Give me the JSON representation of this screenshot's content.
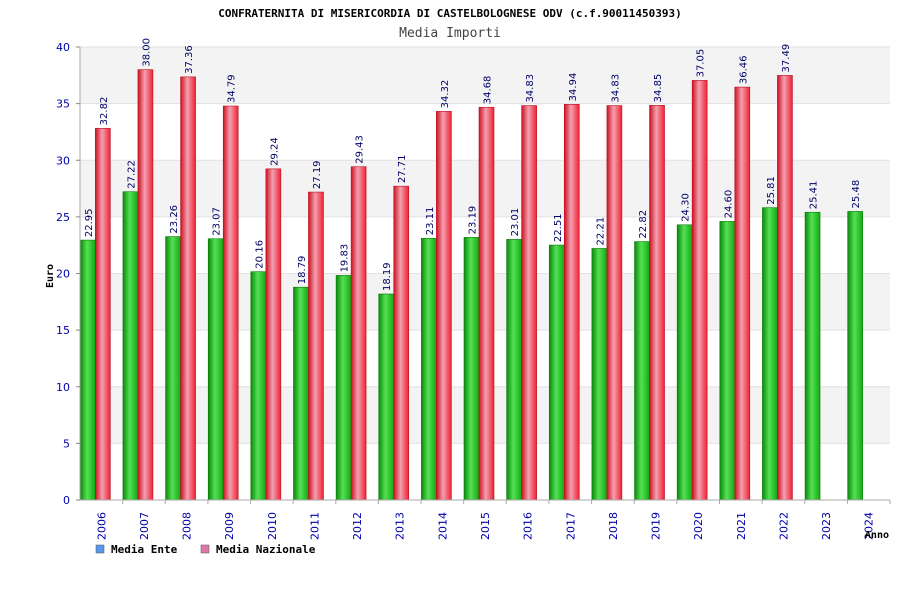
{
  "chart_data": {
    "type": "bar",
    "title": "CONFRATERNITA DI MISERICORDIA DI CASTELBOLOGNESE ODV (c.f.90011450393)",
    "subtitle": "Media Importi",
    "xlabel": "Anno",
    "ylabel": "Euro",
    "ylim": [
      0,
      40
    ],
    "yticks": [
      0,
      5,
      10,
      15,
      20,
      25,
      30,
      35,
      40
    ],
    "categories": [
      "2006",
      "2007",
      "2008",
      "2009",
      "2010",
      "2011",
      "2012",
      "2013",
      "2014",
      "2015",
      "2016",
      "2017",
      "2018",
      "2019",
      "2020",
      "2021",
      "2022",
      "2023",
      "2024"
    ],
    "series": [
      {
        "name": "Media Ente",
        "color": "#22bb22",
        "legend_color": "#5599ee",
        "values": [
          22.95,
          27.22,
          23.26,
          23.07,
          20.16,
          18.79,
          19.83,
          18.19,
          23.11,
          23.19,
          23.01,
          22.51,
          22.21,
          22.82,
          24.3,
          24.6,
          25.81,
          25.41,
          25.48
        ],
        "labels": [
          "22.95",
          "27.22",
          "23.26",
          "23.07",
          "20.16",
          "18.79",
          "19.83",
          "18.19",
          "23.11",
          "23.19",
          "23.01",
          "22.51",
          "22.21",
          "22.82",
          "24.30",
          "24.60",
          "25.81",
          "25.41",
          "25.48"
        ]
      },
      {
        "name": "Media Nazionale",
        "color": "#ee2233",
        "legend_color": "#dd77aa",
        "values": [
          32.82,
          38.0,
          37.36,
          34.79,
          29.24,
          27.19,
          29.43,
          27.71,
          34.32,
          34.68,
          34.83,
          34.94,
          34.83,
          34.85,
          37.05,
          36.46,
          37.49,
          null,
          null
        ],
        "labels": [
          "32.82",
          "38.00",
          "37.36",
          "34.79",
          "29.24",
          "27.19",
          "29.43",
          "27.71",
          "34.32",
          "34.68",
          "34.83",
          "34.94",
          "34.83",
          "34.85",
          "37.05",
          "36.46",
          "37.49",
          "",
          ""
        ]
      }
    ],
    "grid": true,
    "legend_position": "bottom-left"
  }
}
